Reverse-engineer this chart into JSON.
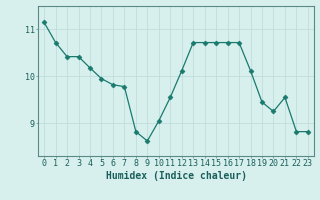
{
  "x": [
    0,
    1,
    2,
    3,
    4,
    5,
    6,
    7,
    8,
    9,
    10,
    11,
    12,
    13,
    14,
    15,
    16,
    17,
    18,
    19,
    20,
    21,
    22,
    23
  ],
  "y": [
    11.15,
    10.72,
    10.42,
    10.42,
    10.18,
    9.95,
    9.82,
    9.78,
    8.82,
    8.62,
    9.05,
    9.55,
    10.12,
    10.72,
    10.72,
    10.72,
    10.72,
    10.72,
    10.12,
    9.45,
    9.25,
    9.55,
    8.82,
    8.82
  ],
  "line_color": "#1a7a6e",
  "marker": "D",
  "marker_size": 2.5,
  "bg_color": "#d7f0ee",
  "grid_color": "#c0dedd",
  "xlabel": "Humidex (Indice chaleur)",
  "xlim": [
    -0.5,
    23.5
  ],
  "ylim": [
    8.3,
    11.5
  ],
  "yticks": [
    9,
    10,
    11
  ],
  "xticks": [
    0,
    1,
    2,
    3,
    4,
    5,
    6,
    7,
    8,
    9,
    10,
    11,
    12,
    13,
    14,
    15,
    16,
    17,
    18,
    19,
    20,
    21,
    22,
    23
  ],
  "xlabel_fontsize": 7,
  "tick_fontsize": 6,
  "label_color": "#1a5f5a",
  "spine_color": "#5a8a85",
  "linewidth": 0.9
}
